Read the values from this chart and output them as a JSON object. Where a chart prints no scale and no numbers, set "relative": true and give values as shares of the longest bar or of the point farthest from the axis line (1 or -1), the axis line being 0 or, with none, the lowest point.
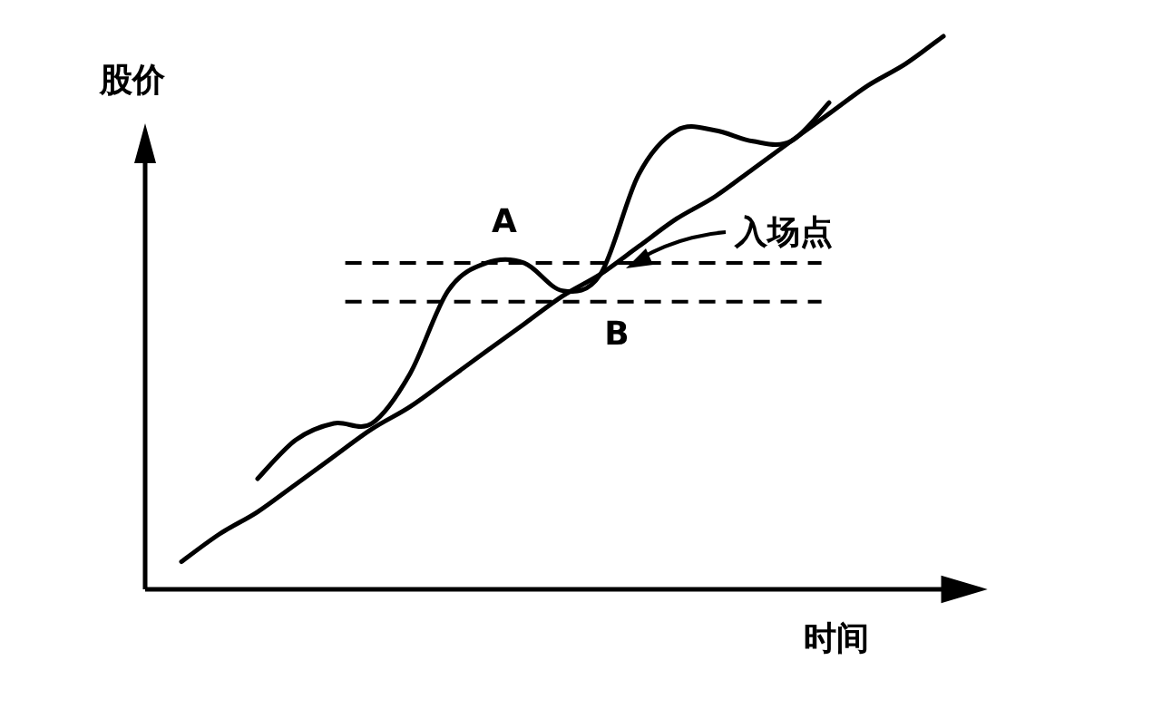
{
  "chart_data": {
    "type": "line",
    "relative": true,
    "ylabel": "股价",
    "xlabel": "时间",
    "categories": [
      null,
      null,
      null,
      null,
      null,
      null,
      null,
      null,
      null,
      null,
      null,
      null,
      null,
      null,
      null,
      null,
      null,
      null,
      null,
      null,
      null
    ],
    "series": [
      {
        "color": "#000000",
        "values": [
          0.05,
          0.1,
          0.14,
          0.19,
          0.24,
          0.29,
          0.33,
          0.38,
          0.43,
          0.48,
          0.53,
          0.57,
          0.62,
          0.67,
          0.71,
          0.76,
          0.81,
          0.86,
          0.91,
          0.95,
          1.0
        ]
      },
      {
        "color": "#000000",
        "values": [
          null,
          null,
          0.2,
          0.27,
          0.3,
          0.3,
          0.39,
          0.54,
          0.59,
          0.59,
          0.54,
          0.57,
          0.75,
          0.83,
          0.83,
          0.81,
          0.81,
          0.88,
          null,
          null,
          null
        ]
      }
    ],
    "ref_lines": [
      {
        "axis": "y",
        "value": 0.59,
        "line_style": "dashed",
        "color": "#000000"
      },
      {
        "axis": "y",
        "value": 0.52,
        "line_style": "dashed",
        "color": "#000000"
      }
    ],
    "annotations": [
      "A",
      "B",
      "入场点"
    ]
  }
}
